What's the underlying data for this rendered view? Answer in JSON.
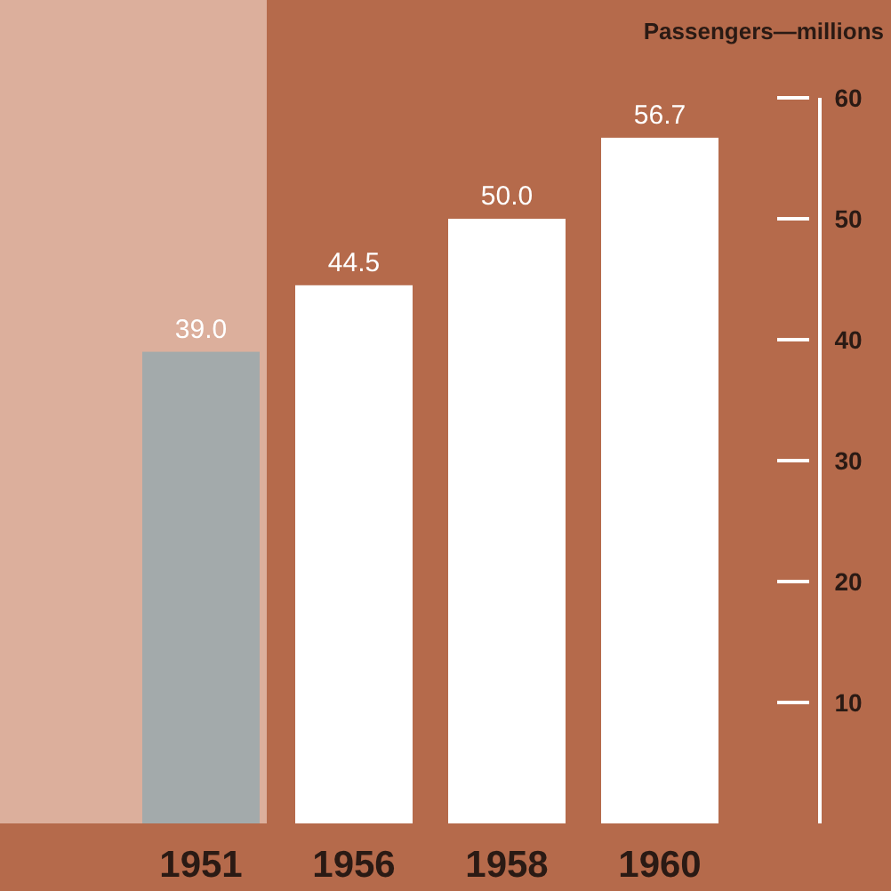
{
  "chart_data": {
    "type": "bar",
    "ylabel": "Passengers—millions",
    "categories": [
      "1951",
      "1956",
      "1958",
      "1960"
    ],
    "values": [
      39.0,
      44.5,
      50.0,
      56.7
    ],
    "colors": [
      "#a3aaab",
      "#ffffff",
      "#ffffff",
      "#ffffff"
    ],
    "value_labels": [
      "39.0",
      "44.5",
      "50.0",
      "56.7"
    ],
    "ylim": [
      0,
      60
    ],
    "yticks": [
      10,
      20,
      30,
      40,
      50,
      60
    ],
    "bands": [
      {
        "axis": "x",
        "from": "1951",
        "to": "1951",
        "color": "#dcaf9c"
      }
    ]
  }
}
